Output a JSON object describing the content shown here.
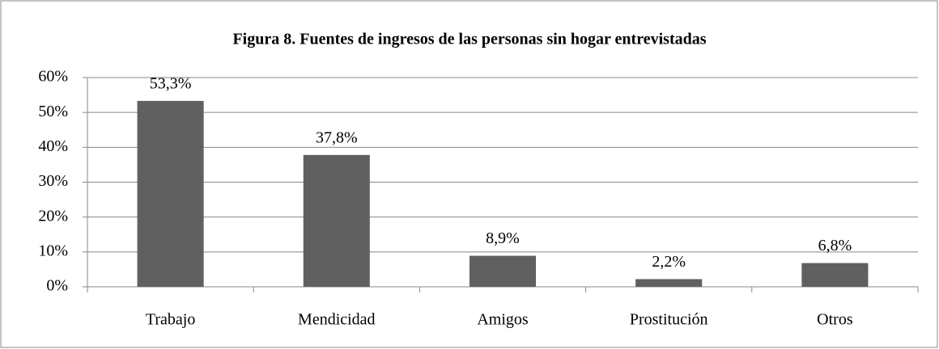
{
  "chart_data": {
    "type": "bar",
    "title": "Figura 8.  Fuentes de ingresos de las personas sin hogar entrevistadas",
    "categories": [
      "Trabajo",
      "Mendicidad",
      "Amigos",
      "Prostitución",
      "Otros"
    ],
    "values": [
      53.3,
      37.8,
      8.9,
      2.2,
      6.8
    ],
    "value_labels": [
      "53,3%",
      "37,8%",
      "8,9%",
      "2,2%",
      "6,8%"
    ],
    "color": "#606060",
    "ylim": [
      0,
      60
    ],
    "yticks": [
      {
        "value": 0,
        "label": "0%"
      },
      {
        "value": 10,
        "label": "10%"
      },
      {
        "value": 20,
        "label": "20%"
      },
      {
        "value": 30,
        "label": "30%"
      },
      {
        "value": 40,
        "label": "40%"
      },
      {
        "value": 50,
        "label": "50%"
      },
      {
        "value": 60,
        "label": "60%"
      }
    ],
    "grid": true
  }
}
